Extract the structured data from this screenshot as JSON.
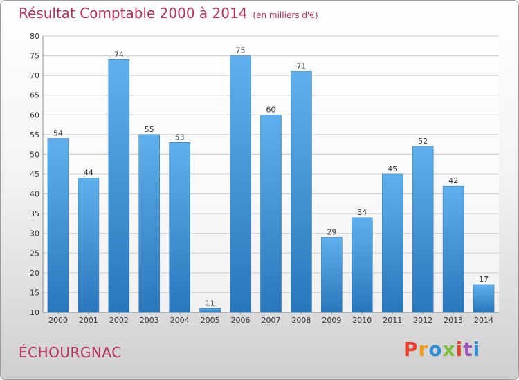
{
  "header": {
    "title": "Résultat Comptable 2000 à 2014",
    "subtitle": "(en milliers d'€)"
  },
  "footer": {
    "place": "ÉCHOURGNAC",
    "logo": "Proxiti",
    "logo_colors": [
      "#e8412c",
      "#f29a1e",
      "#2a8fd6",
      "#7cbf3f",
      "#e8412c",
      "#9b59b6",
      "#2a8fd6"
    ]
  },
  "colors": {
    "bar_top": "#5eb1ec",
    "bar_bottom": "#2a76bb",
    "title": "#b5315e",
    "grid": "#cccccc"
  },
  "chart_data": {
    "type": "bar",
    "title": "Résultat Comptable 2000 à 2014",
    "subtitle": "(en milliers d'€)",
    "categories": [
      "2000",
      "2001",
      "2002",
      "2003",
      "2004",
      "2005",
      "2006",
      "2007",
      "2008",
      "2009",
      "2010",
      "2011",
      "2012",
      "2013",
      "2014"
    ],
    "values": [
      54,
      44,
      74,
      55,
      53,
      11,
      75,
      60,
      71,
      29,
      34,
      45,
      52,
      42,
      17
    ],
    "ylim": [
      10,
      80
    ],
    "yticks": [
      10,
      15,
      20,
      25,
      30,
      35,
      40,
      45,
      50,
      55,
      60,
      65,
      70,
      75,
      80
    ],
    "grid": true,
    "xlabel": "",
    "ylabel": ""
  }
}
